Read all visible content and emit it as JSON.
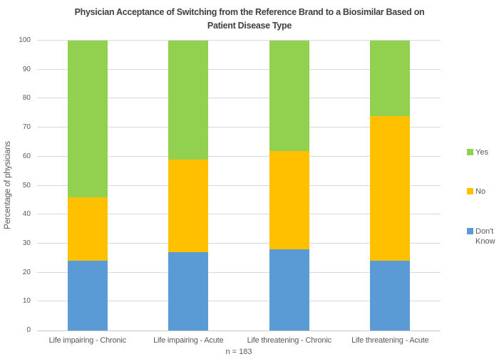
{
  "chart_data": {
    "type": "bar",
    "stacked": true,
    "percent_stacked": true,
    "title": "Physician Acceptance of Switching from the Reference Brand to a Biosimilar Based on Patient Disease Type",
    "title_lines": [
      "Physician Acceptance of Switching from the Reference Brand to a Biosimilar Based on",
      "Patient Disease Type"
    ],
    "xlabel": "",
    "ylabel": "Percentage of physicians",
    "ylim": [
      0,
      100
    ],
    "y_ticks": [
      0,
      10,
      20,
      30,
      40,
      50,
      60,
      70,
      80,
      90,
      100
    ],
    "grid": true,
    "legend_position": "right",
    "categories": [
      "Life impairing - Chronic",
      "Life impairing - Acute",
      "Life threatening - Chronic",
      "Life threatening - Acute"
    ],
    "series": [
      {
        "name": "Yes",
        "color": "#92D050",
        "values": [
          54,
          41,
          38,
          26
        ]
      },
      {
        "name": "No",
        "color": "#FFC000",
        "values": [
          22,
          32,
          34,
          50
        ]
      },
      {
        "name": "Don't Know",
        "color": "#5B9BD5",
        "values": [
          24,
          27,
          28,
          24
        ]
      }
    ],
    "footnote": "n = 183"
  },
  "colors": {
    "grid": "#D9D9D9",
    "axis_line": "#C9C9C9",
    "title_text": "#404040",
    "label_text": "#595959",
    "background": "#FFFFFF"
  }
}
